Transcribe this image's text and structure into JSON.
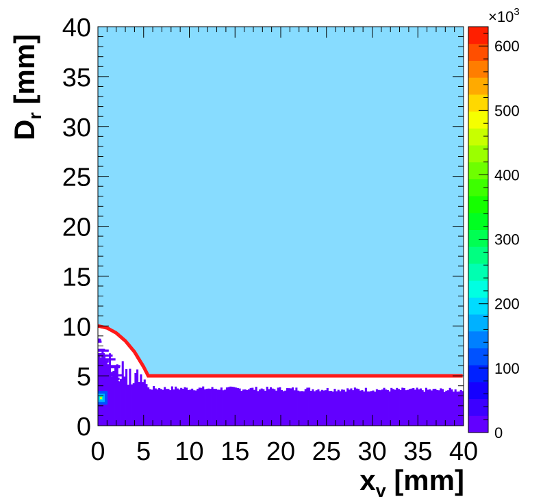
{
  "chart_data": {
    "type": "heatmap",
    "title": "",
    "xlabel": {
      "main": "x",
      "sub": "v",
      "unit": " [mm]"
    },
    "ylabel": {
      "main": "D",
      "sub": "r",
      "unit": " [mm]"
    },
    "xlim": [
      0,
      40
    ],
    "ylim": [
      0,
      40
    ],
    "xticks": [
      "0",
      "5",
      "10",
      "15",
      "20",
      "25",
      "30",
      "35",
      "40"
    ],
    "yticks": [
      "0",
      "5",
      "10",
      "15",
      "20",
      "25",
      "30",
      "35",
      "40"
    ],
    "grid": false,
    "background_color": "#87dcff",
    "colorbar": {
      "multiplier_base": "×10",
      "multiplier_exp": "3",
      "tick_labels": [
        "0",
        "100",
        "200",
        "300",
        "400",
        "500",
        "600"
      ],
      "tick_values": [
        0,
        100,
        200,
        300,
        400,
        500,
        600
      ],
      "range": [
        0,
        630
      ],
      "colors": [
        "#6200ff",
        "#3c00ff",
        "#1500ff",
        "#0021ff",
        "#0052ff",
        "#0080ff",
        "#00b1ff",
        "#00dcff",
        "#00ffe2",
        "#00ffb1",
        "#00ff81",
        "#00ff52",
        "#00ff21",
        "#15ff00",
        "#3dff00",
        "#6eff00",
        "#9bff00",
        "#c8ff00",
        "#f5ff00",
        "#ffd800",
        "#ffaa00",
        "#ff7d00",
        "#ff4f00",
        "#ff1f00"
      ]
    },
    "boundary_curve": {
      "color": "#ff1a1a",
      "description_points_x": [
        0,
        1,
        2,
        3,
        4,
        5,
        5.5,
        6,
        40
      ],
      "description_points_y": [
        10,
        9.8,
        9.3,
        8.5,
        7.4,
        5.9,
        5,
        5,
        5
      ]
    },
    "series": [
      {
        "region": "bulk",
        "value_level": "low",
        "color": "#6200ff",
        "x_range": [
          0,
          40
        ],
        "y_upper_approx": 3.8
      },
      {
        "region": "hotspot",
        "value_level": "high",
        "color": "#00b1ff",
        "x": 0.3,
        "y": 2.8
      }
    ]
  }
}
